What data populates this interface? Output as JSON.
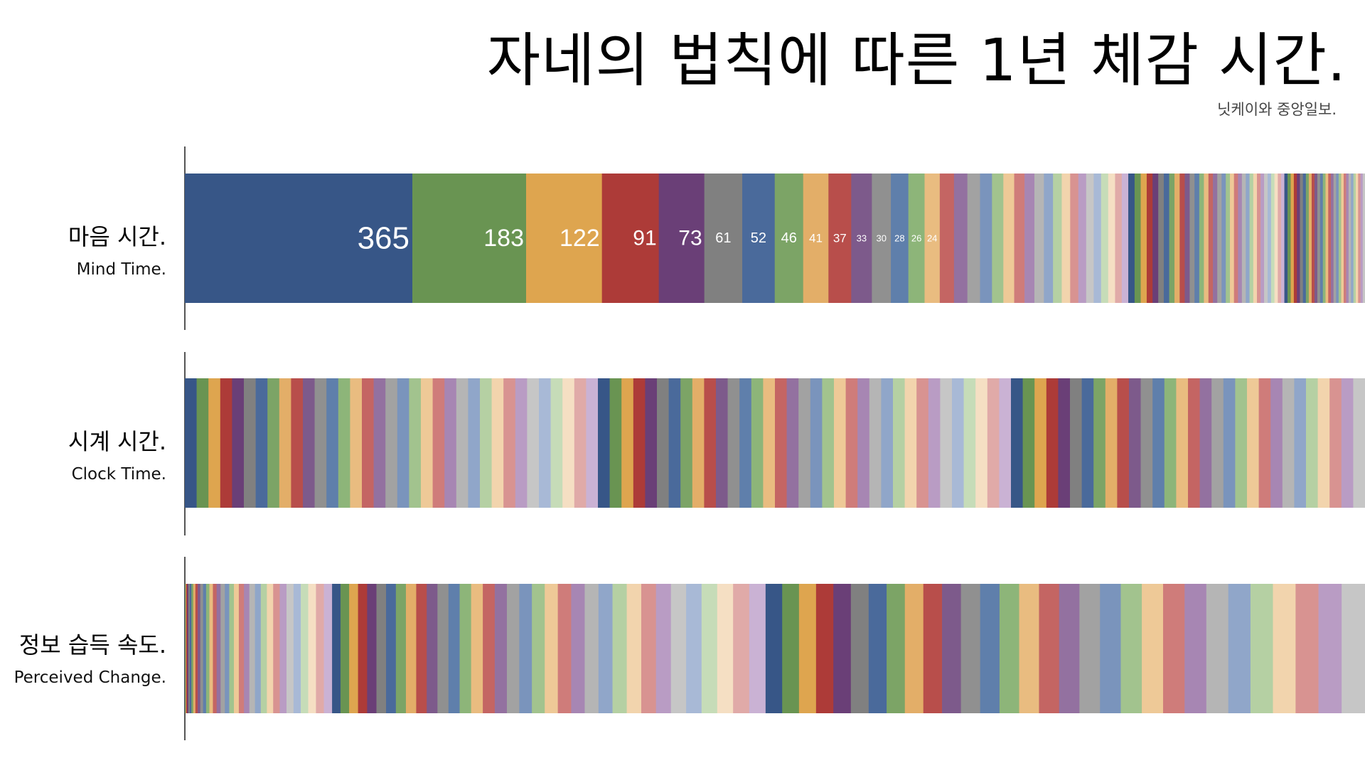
{
  "title": "자네의 법칙에 따른 1년 체감 시간.",
  "subtitle": "닛케이와 중앙일보.",
  "rows": [
    {
      "label_ko": "마음 시간.",
      "label_en": "Mind Time."
    },
    {
      "label_ko": "시계 시간.",
      "label_en": "Clock Time."
    },
    {
      "label_ko": "정보 습득 속도.",
      "label_en": "Perceived Change."
    }
  ],
  "chart_data": {
    "type": "bar",
    "title": "자네의 법칙에 따른 1년 체감 시간.",
    "subtitle": "닛케이와 중앙일보.",
    "xlabel": "",
    "ylabel": "",
    "grid": false,
    "legend": "none",
    "stacked": true,
    "orientation": "horizontal",
    "categories": [
      "마음 시간.",
      "시계 시간.",
      "정보 습득 속도."
    ],
    "years_of_age": 100,
    "series": [
      {
        "label_ko": "마음 시간.",
        "label_en": "Mind Time.",
        "segment_rule": "365 / age",
        "value_labels": [
          "365",
          "183",
          "122",
          "91",
          "73",
          "61",
          "52",
          "46",
          "41",
          "37",
          "33",
          "30",
          "28",
          "26",
          "24"
        ]
      },
      {
        "label_ko": "시계 시간.",
        "label_en": "Clock Time.",
        "segment_rule": "equal (1 per year)"
      },
      {
        "label_ko": "정보 습득 속도.",
        "label_en": "Perceived Change.",
        "segment_rule": "age (mind time reversed)"
      }
    ],
    "palette": [
      "#375687",
      "#699452",
      "#dea54f",
      "#ad3b38",
      "#6a3f77",
      "#808080",
      "#4a6a9b",
      "#7ca466",
      "#e3ae68",
      "#b84e4b",
      "#7d5a8b",
      "#909090",
      "#5f7fab",
      "#8db579",
      "#e9bc80",
      "#c46563",
      "#9371a0",
      "#a2a2a2",
      "#7a94bc",
      "#a2c38e",
      "#eec997",
      "#cf7c7a",
      "#a786b3",
      "#b5b5b5",
      "#90a6c9",
      "#b5d0a3",
      "#f2d4ad",
      "#d89391",
      "#b99cc4",
      "#c6c6c6",
      "#a8b9d6",
      "#c6dcb8",
      "#f5dfc3",
      "#e0aaa8",
      "#cab2d4"
    ]
  }
}
